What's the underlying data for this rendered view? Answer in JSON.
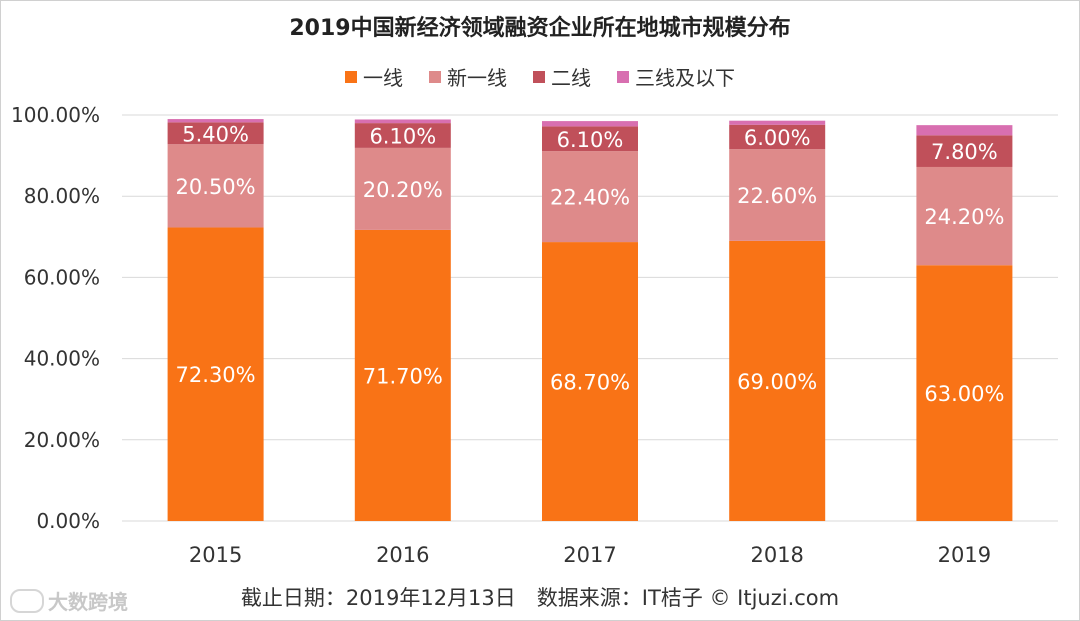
{
  "title": "2019中国新经济领域融资企业所在地城市规模分布",
  "footer": "截止日期：2019年12月13日　数据来源：IT桔子 © Itjuzi.com",
  "watermark": "大数跨境",
  "chart_data": {
    "type": "bar",
    "stacked": true,
    "title": "2019中国新经济领域融资企业所在地城市规模分布",
    "categories": [
      "2015",
      "2016",
      "2017",
      "2018",
      "2019"
    ],
    "series": [
      {
        "name": "一线",
        "color": "#f97316",
        "values": [
          72.3,
          71.7,
          68.7,
          69.0,
          63.0
        ],
        "labels": [
          "72.30%",
          "71.70%",
          "68.70%",
          "69.00%",
          "63.00%"
        ]
      },
      {
        "name": "新一线",
        "color": "#de8a8a",
        "values": [
          20.5,
          20.2,
          22.4,
          22.6,
          24.2
        ],
        "labels": [
          "20.50%",
          "20.20%",
          "22.40%",
          "22.60%",
          "24.20%"
        ]
      },
      {
        "name": "二线",
        "color": "#c0505a",
        "values": [
          5.4,
          6.1,
          6.1,
          6.0,
          7.8
        ],
        "labels": [
          "5.40%",
          "6.10%",
          "6.10%",
          "6.00%",
          "7.80%"
        ]
      },
      {
        "name": "三线及以下",
        "color": "#d86fb0",
        "values": [
          0.8,
          0.9,
          1.3,
          1.0,
          2.5
        ],
        "labels": [
          "",
          "",
          "",
          "",
          ""
        ]
      }
    ],
    "yticks": [
      "0.00%",
      "20.00%",
      "40.00%",
      "60.00%",
      "80.00%",
      "100.00%"
    ],
    "ylim": [
      0,
      100
    ],
    "grid": true,
    "legend": "top"
  }
}
